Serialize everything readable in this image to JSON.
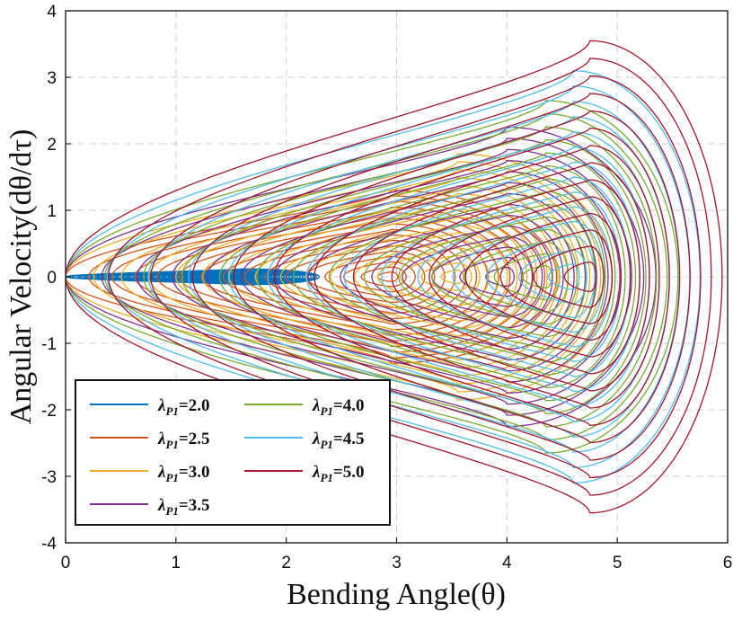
{
  "chart_data": {
    "type": "line",
    "subtype": "phase-portrait",
    "xlabel": "Bending Angle(θ)",
    "ylabel": "Angular Velocity(dθ/dτ)",
    "xlim": [
      0,
      6
    ],
    "ylim": [
      -4,
      4
    ],
    "xticks": [
      "0",
      "1",
      "2",
      "3",
      "4",
      "5",
      "6"
    ],
    "yticks": [
      "-4",
      "-3",
      "-2",
      "-1",
      "0",
      "1",
      "2",
      "3",
      "4"
    ],
    "grid": true,
    "legend_position": "bottom-left",
    "legend_symbol": "λ",
    "legend_subscript": "P1",
    "series": [
      {
        "name": "=2.0",
        "color": "#0072BD",
        "center": [
          1.6,
          0
        ],
        "outer": {
          "x": [
            0.0,
            2.3
          ],
          "ymax": 0.12
        },
        "rings": 32
      },
      {
        "name": "=2.5",
        "color": "#D95319",
        "center": [
          2.95,
          0
        ],
        "outer": {
          "x": [
            0.0,
            4.45
          ],
          "ymax": 1.3
        },
        "rings": 16
      },
      {
        "name": "=3.0",
        "color": "#EDB120",
        "center": [
          3.55,
          0
        ],
        "outer": {
          "x": [
            0.0,
            4.95
          ],
          "ymax": 1.85
        },
        "rings": 16
      },
      {
        "name": "=3.5",
        "color": "#7E2F8E",
        "center": [
          4.0,
          0
        ],
        "outer": {
          "x": [
            0.0,
            5.35
          ],
          "ymax": 2.25
        },
        "rings": 14
      },
      {
        "name": "=4.0",
        "color": "#77AC30",
        "center": [
          4.35,
          0
        ],
        "outer": {
          "x": [
            0.0,
            5.55
          ],
          "ymax": 2.65
        },
        "rings": 14
      },
      {
        "name": "=4.5",
        "color": "#4DBEEE",
        "center": [
          4.6,
          0
        ],
        "outer": {
          "x": [
            0.0,
            5.75
          ],
          "ymax": 3.1
        },
        "rings": 14
      },
      {
        "name": "=5.0",
        "color": "#A2142F",
        "center": [
          4.75,
          0
        ],
        "outer": {
          "x": [
            0.0,
            5.95
          ],
          "ymax": 3.55
        },
        "rings": 14
      }
    ]
  }
}
